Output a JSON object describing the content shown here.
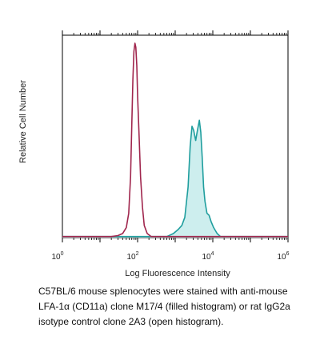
{
  "chart_data": {
    "type": "area",
    "title": "",
    "xlabel": "Log Fluorescence Intensity",
    "ylabel": "Relative Cell Number",
    "x_scale": "log",
    "xlim": [
      1,
      1000000
    ],
    "ylim": [
      0,
      100
    ],
    "x_ticks": [
      {
        "value": 1,
        "base": "10",
        "exp": "0"
      },
      {
        "value": 100,
        "base": "10",
        "exp": "2"
      },
      {
        "value": 10000,
        "base": "10",
        "exp": "4"
      },
      {
        "value": 1000000,
        "base": "10",
        "exp": "6"
      }
    ],
    "grid": false,
    "legend": "none",
    "series": [
      {
        "style": "open histogram",
        "color": "#a0264d",
        "filled": false,
        "points": [
          [
            1,
            0.5
          ],
          [
            10,
            0.5
          ],
          [
            20,
            0.5
          ],
          [
            30,
            1
          ],
          [
            40,
            2
          ],
          [
            50,
            5
          ],
          [
            58,
            12
          ],
          [
            65,
            30
          ],
          [
            70,
            55
          ],
          [
            75,
            78
          ],
          [
            80,
            92
          ],
          [
            85,
            96
          ],
          [
            90,
            94
          ],
          [
            95,
            85
          ],
          [
            100,
            70
          ],
          [
            110,
            50
          ],
          [
            120,
            30
          ],
          [
            135,
            15
          ],
          [
            150,
            6
          ],
          [
            180,
            2
          ],
          [
            230,
            0.5
          ],
          [
            1000000,
            0.5
          ]
        ]
      },
      {
        "style": "filled histogram",
        "color": "#1f9e9e",
        "fill": "#cdeeee",
        "filled": true,
        "points": [
          [
            1,
            0.5
          ],
          [
            600,
            0.5
          ],
          [
            900,
            2
          ],
          [
            1200,
            4
          ],
          [
            1500,
            6
          ],
          [
            1800,
            10
          ],
          [
            2200,
            25
          ],
          [
            2500,
            45
          ],
          [
            2800,
            55
          ],
          [
            3100,
            53
          ],
          [
            3500,
            48
          ],
          [
            3900,
            53
          ],
          [
            4400,
            58
          ],
          [
            4800,
            52
          ],
          [
            5200,
            40
          ],
          [
            5700,
            25
          ],
          [
            6200,
            18
          ],
          [
            7000,
            12
          ],
          [
            8000,
            11
          ],
          [
            9000,
            8
          ],
          [
            10500,
            5
          ],
          [
            13000,
            2
          ],
          [
            16000,
            0.5
          ],
          [
            1000000,
            0.5
          ]
        ]
      }
    ]
  },
  "caption": {
    "line1": "C57BL/6 mouse splenocytes were stained with anti-mouse",
    "line2": "LFA-1α (CD11a) clone M17/4  (filled histogram) or rat IgG2a",
    "line3": "isotype control clone 2A3 (open histogram)."
  }
}
